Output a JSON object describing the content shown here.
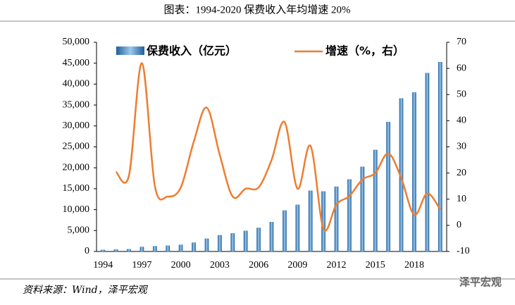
{
  "chart_data": {
    "type": "bar-line",
    "title": "图表：1994-2020 保费收入年均增速 20%",
    "source": "资料来源：Wind，泽平宏观",
    "watermark": "泽平宏观",
    "categories": [
      "1994",
      null,
      null,
      "1997",
      null,
      null,
      "2000",
      null,
      null,
      "2003",
      null,
      null,
      "2006",
      null,
      null,
      "2009",
      null,
      null,
      "2012",
      null,
      null,
      "2015",
      null,
      null,
      "2018",
      null,
      null
    ],
    "series": [
      {
        "name": "保费收入（亿元）",
        "type": "bar",
        "color": "#3a7fbf",
        "values": [
          376,
          453,
          539,
          1088,
          1256,
          1393,
          1596,
          2109,
          3053,
          3880,
          4318,
          4927,
          5641,
          7036,
          9784,
          11137,
          14528,
          14339,
          15488,
          17222,
          20235,
          24283,
          30959,
          36581,
          38017,
          42645,
          45257
        ]
      },
      {
        "name": "增速（%，右）",
        "type": "line",
        "axis": "y2",
        "color": "#ed7d31",
        "values": [
          null,
          20.5,
          19,
          62,
          15,
          11,
          14.5,
          32,
          45,
          27,
          11,
          14,
          14.5,
          25,
          39.5,
          14,
          30.4,
          -1.3,
          8,
          11.2,
          17.5,
          20,
          27.5,
          18,
          4,
          12.2,
          6.1
        ]
      }
    ],
    "ylim": [
      0,
      50000
    ],
    "yticks": [
      0,
      {
        "value": 5000,
        "label": "5,000"
      },
      {
        "value": 10000,
        "label": "10,000"
      },
      {
        "value": 15000,
        "label": "15,000"
      },
      {
        "value": 20000,
        "label": "20,000"
      },
      {
        "value": 25000,
        "label": "25,000"
      },
      {
        "value": 30000,
        "label": "30,000"
      },
      {
        "value": 35000,
        "label": "35,000"
      },
      {
        "value": 40000,
        "label": "40,000"
      },
      {
        "value": 45000,
        "label": "45,000"
      },
      {
        "value": 50000,
        "label": "50,000"
      }
    ],
    "y2lim": [
      -10,
      70
    ],
    "y2ticks": [
      -10,
      0,
      10,
      20,
      30,
      40,
      50,
      60,
      70
    ],
    "grid": false
  }
}
